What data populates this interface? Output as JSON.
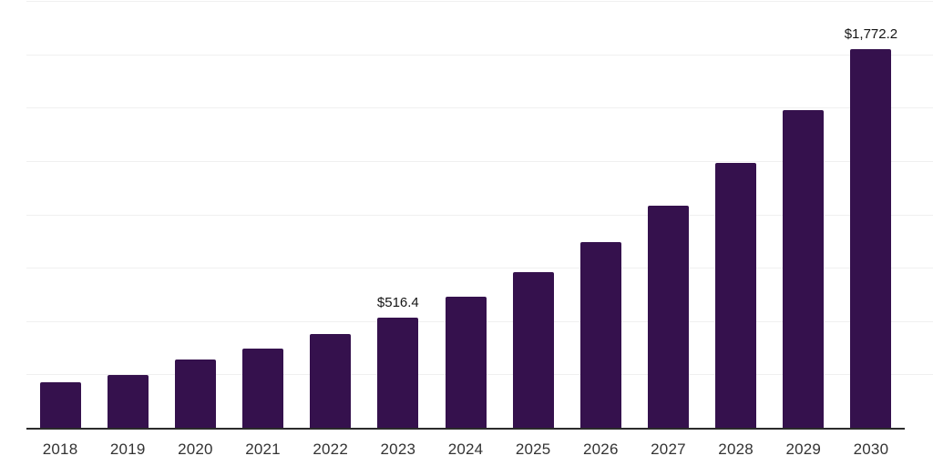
{
  "chart_data": {
    "type": "bar",
    "title": "",
    "xlabel": "",
    "ylabel": "",
    "categories": [
      "2018",
      "2019",
      "2020",
      "2021",
      "2022",
      "2023",
      "2024",
      "2025",
      "2026",
      "2027",
      "2028",
      "2029",
      "2030"
    ],
    "values": [
      215,
      248,
      318,
      371,
      440,
      516.4,
      614,
      729,
      868,
      1042,
      1240,
      1490,
      1772.2
    ],
    "annotations": [
      {
        "category": "2023",
        "text": "$516.4"
      },
      {
        "category": "2030",
        "text": "$1,772.2"
      }
    ],
    "ylim": [
      0,
      2000
    ],
    "gridline_interval": 250,
    "grid": true,
    "legend": false,
    "colors": {
      "bar": "#35114D",
      "gridline": "#F0F0F0",
      "axis": "#2B2B2B",
      "tick_label": "#333333",
      "data_label": "#141414",
      "background": "#FFFFFF"
    }
  }
}
